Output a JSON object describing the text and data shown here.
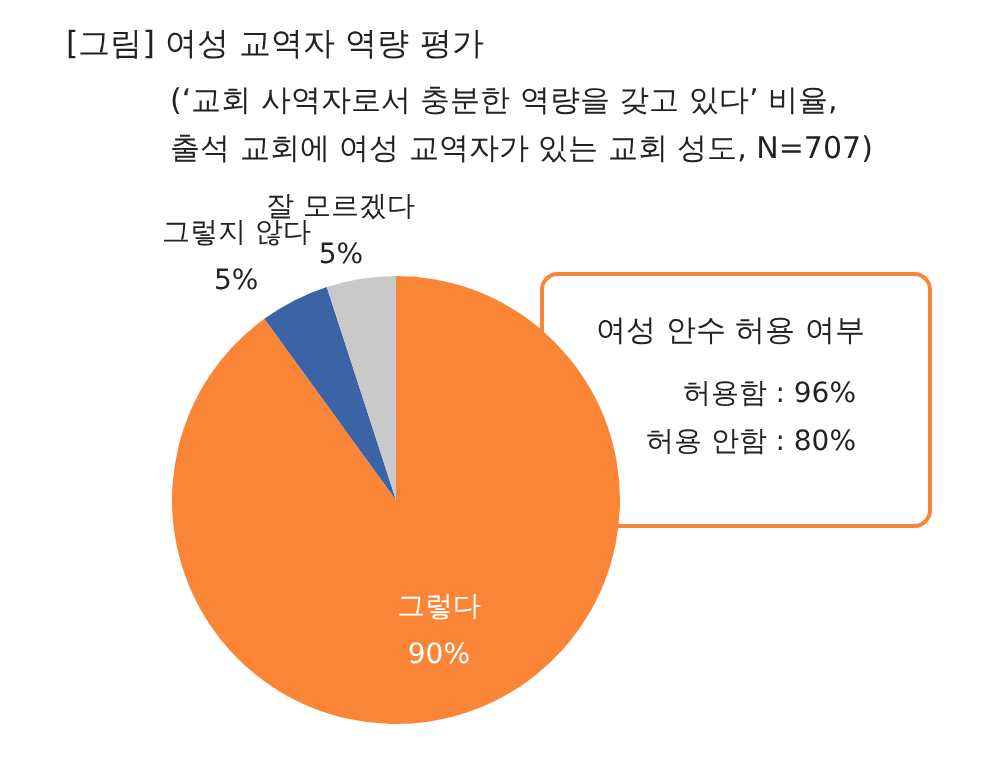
{
  "chart_data": {
    "type": "pie",
    "title": "[그림] 여성 교역자 역량 평가",
    "subtitle": "(‘교회 사역자로서 충분한 역량을 갖고 있다’ 비율,\n출석 교회에 여성 교역자가 있는 교회 성도, N=707)",
    "categories": [
      "그렇다",
      "그렇지 않다",
      "잘 모르겠다"
    ],
    "values": [
      90,
      5,
      5
    ],
    "colors": [
      "#fb8536",
      "#3a64a5",
      "#c9c9c9"
    ],
    "value_labels": [
      "90%",
      "5%",
      "5%"
    ],
    "annotations": [
      "여성 안수 허용 여부",
      "허용함 : 96%",
      "허용 안함 : 80%"
    ]
  }
}
